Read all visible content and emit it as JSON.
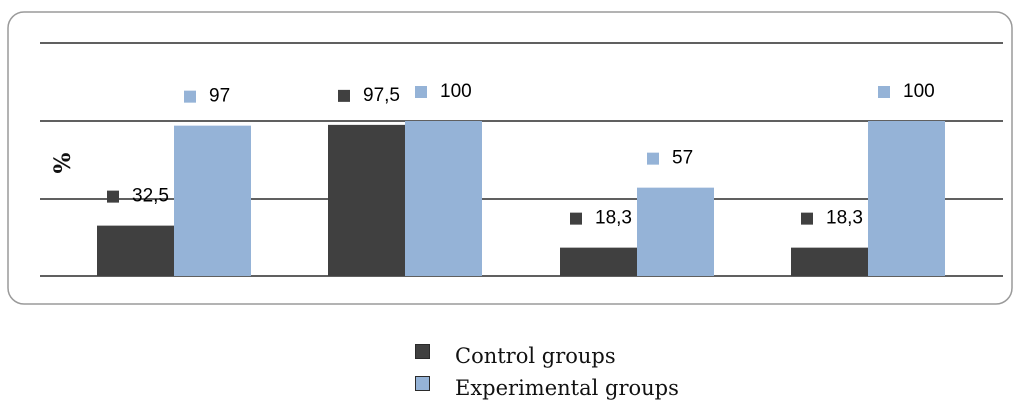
{
  "chart_data": {
    "type": "bar",
    "title": "",
    "xlabel": "",
    "ylabel": "%",
    "ylim": [
      0,
      100
    ],
    "grid": true,
    "legend_position": "bottom-center",
    "categories": [
      "",
      "",
      "",
      ""
    ],
    "series": [
      {
        "name": "Control groups",
        "values": [
          32.5,
          97.5,
          18.3,
          18.3
        ],
        "labels": [
          "32,5",
          "97,5",
          "18,3",
          "18,3"
        ],
        "color": "#404040"
      },
      {
        "name": "Experimental groups",
        "values": [
          97,
          100,
          57,
          100
        ],
        "labels": [
          "97",
          "100",
          "57",
          "100"
        ],
        "color": "#95b3d7"
      }
    ]
  }
}
